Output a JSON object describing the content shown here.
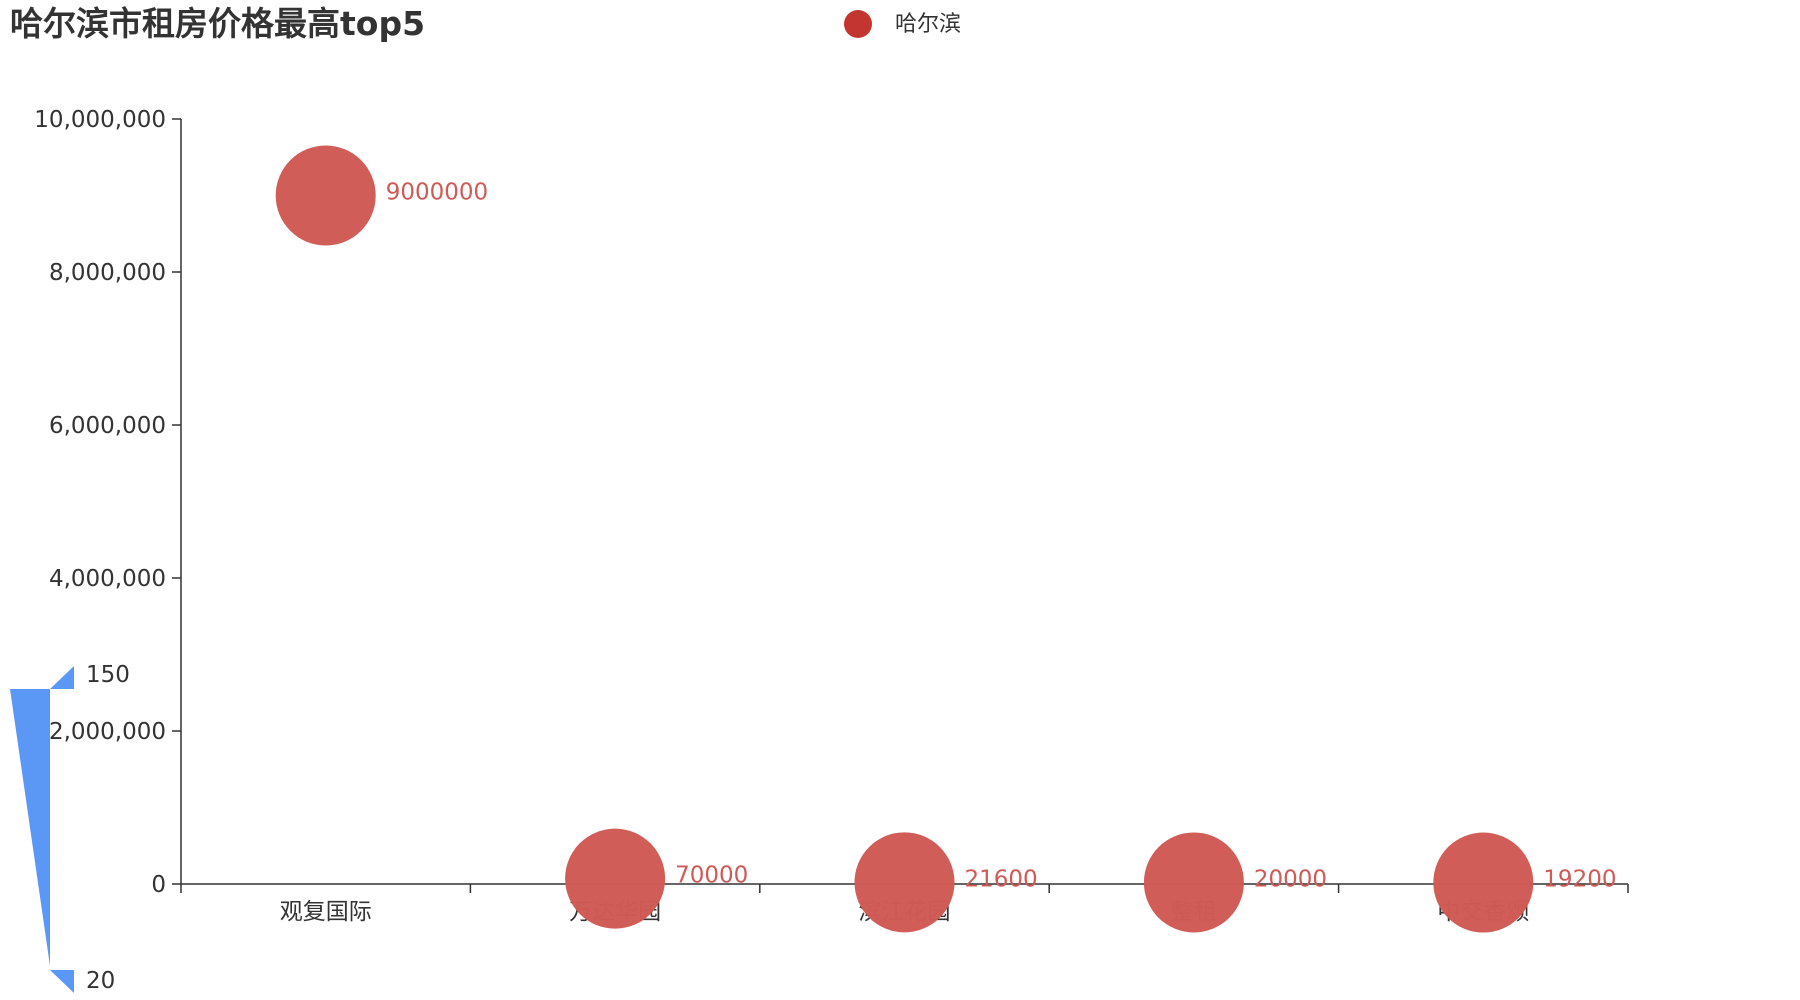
{
  "chart_data": {
    "type": "scatter",
    "title": "哈尔滨市租房价格最高top5",
    "categories": [
      "观复国际",
      "万达华园",
      "滨江花园",
      "整租",
      "中交香颂"
    ],
    "series": [
      {
        "name": "哈尔滨",
        "values": [
          9000000,
          70000,
          21600,
          20000,
          19200
        ],
        "color": "#c23531"
      }
    ],
    "symbol_color": "#d05a56",
    "ylim": [
      0,
      10000000
    ],
    "yticks": [
      0,
      2000000,
      4000000,
      6000000,
      8000000,
      10000000
    ],
    "ytick_labels": [
      "0",
      "2,000,000",
      "4,000,000",
      "6,000,000",
      "8,000,000",
      "10,000,000"
    ],
    "grid": false,
    "legend_position": "top-center",
    "visual_map": {
      "max_label": "150",
      "min_label": "20",
      "color": "#5b97f5"
    }
  }
}
